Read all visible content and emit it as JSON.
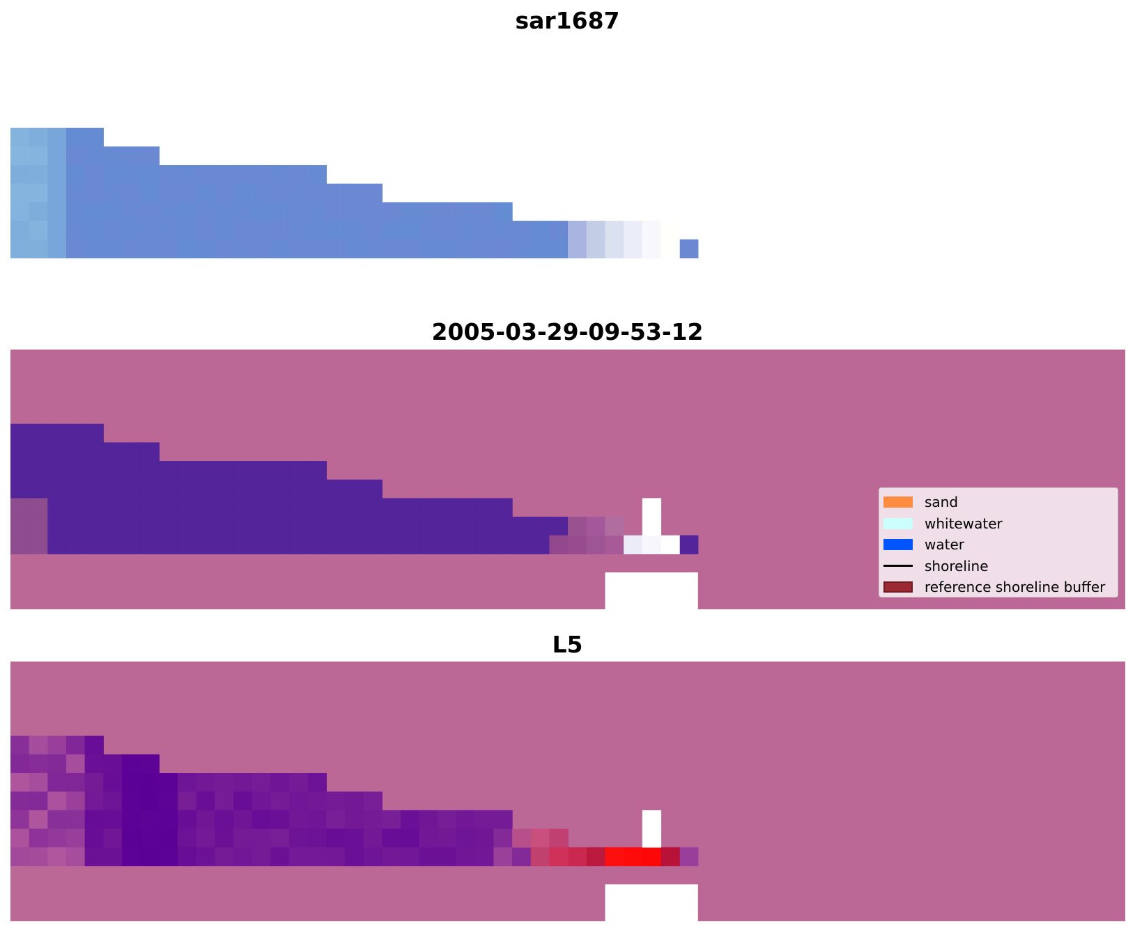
{
  "figure": {
    "panels": [
      {
        "title": "sar1687"
      },
      {
        "title": "2005-03-29-09-53-12"
      },
      {
        "title": "L5"
      }
    ]
  },
  "legend": {
    "items": [
      {
        "label": "sand",
        "color": "#ff8c40",
        "kind": "patch"
      },
      {
        "label": "whitewater",
        "color": "#ccfffc",
        "kind": "patch"
      },
      {
        "label": "water",
        "color": "#0055ff",
        "kind": "patch"
      },
      {
        "label": "shoreline",
        "color": "#000000",
        "kind": "line"
      },
      {
        "label": "reference shoreline buffer",
        "color": "#9b2a34",
        "kind": "patch-outlined"
      }
    ]
  },
  "colors": {
    "background_overlay": "#bb6896",
    "water_class": "#53249a",
    "nodata": "#ffffff"
  }
}
